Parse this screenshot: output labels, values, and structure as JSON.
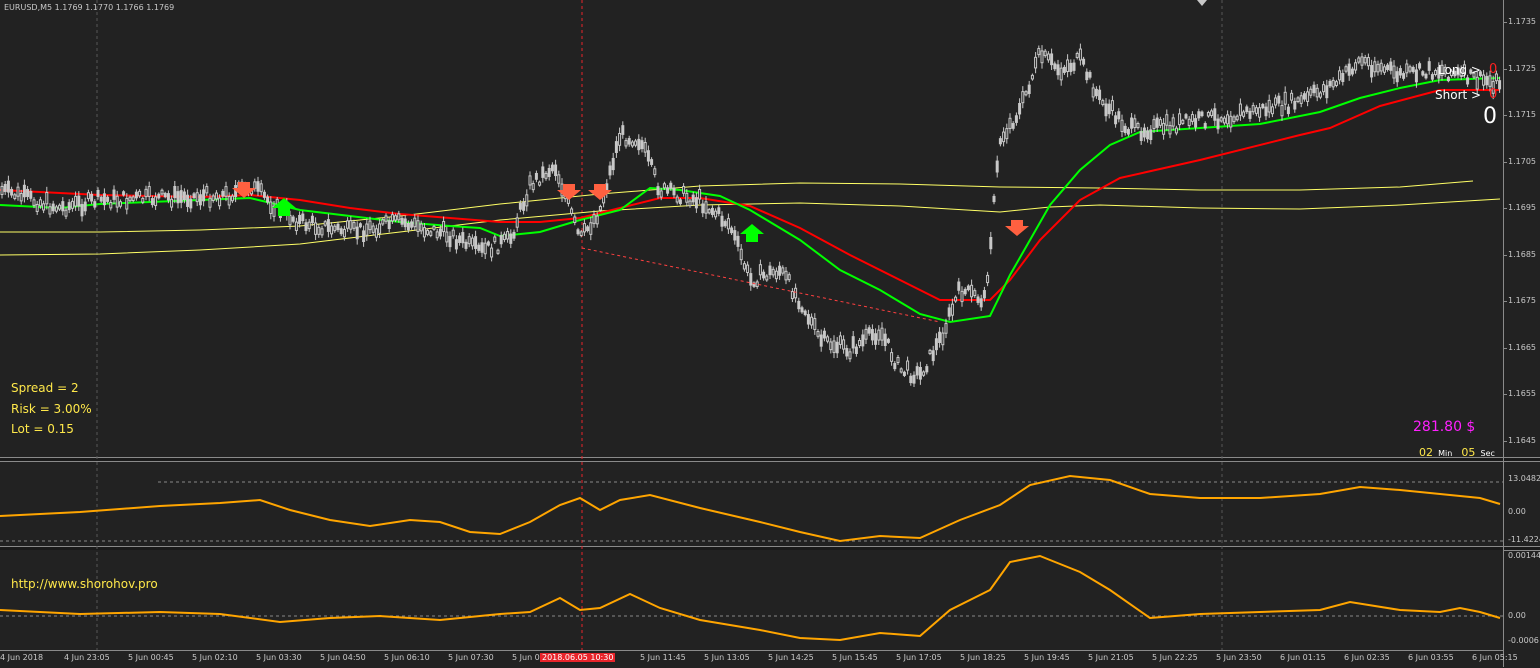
{
  "chart_header": "EURUSD,M5  1.1769 1.1770 1.1766 1.1769",
  "main_axis_ticks": [
    "1.1735",
    "1.1725",
    "1.1715",
    "1.1705",
    "1.1695",
    "1.1685",
    "1.1675",
    "1.1665",
    "1.1655",
    "1.1645"
  ],
  "info": {
    "spread": "Spread = 2",
    "risk": "Risk = 3.00%",
    "lot": "Lot = 0.15"
  },
  "trade": {
    "long_label": "Long >",
    "long_value": "0",
    "short_label": "Short >",
    "short_value": "0",
    "total": "0"
  },
  "profit": "281.80 $",
  "timer": {
    "min_value": "02",
    "min_label": "Min",
    "sec_value": "05",
    "sec_label": "Sec"
  },
  "osc1_ticks": [
    "13.0482",
    "0.00",
    "-11.4224"
  ],
  "osc2_ticks": [
    "0.00144",
    "0.00",
    "-0.0006"
  ],
  "url": "http://www.shorohov.pro",
  "time_labels": [
    "4 Jun 2018",
    "4 Jun 23:05",
    "5 Jun 00:45",
    "5 Jun 02:10",
    "5 Jun 03:30",
    "5 Jun 04:50",
    "5 Jun 06:10",
    "5 Jun 07:30",
    "5 Jun 0",
    "2018.06.05 10:30",
    "5 Jun 11:45",
    "5 Jun 13:05",
    "5 Jun 14:25",
    "5 Jun 15:45",
    "5 Jun 17:05",
    "5 Jun 18:25",
    "5 Jun 19:45",
    "5 Jun 21:05",
    "5 Jun 22:25",
    "5 Jun 23:50",
    "6 Jun 01:15",
    "6 Jun 02:35",
    "6 Jun 03:55",
    "6 Jun 05:15"
  ],
  "colors": {
    "candle": "#c8c8c8",
    "ma_red": "#ff0000",
    "ma_green": "#00ff00",
    "band": "#ffff66",
    "osc": "#ffa500",
    "arrow_up": "#00ff00",
    "arrow_down": "#ff6040",
    "profit": "#ff20ff",
    "cursor": "#e8242b"
  }
}
